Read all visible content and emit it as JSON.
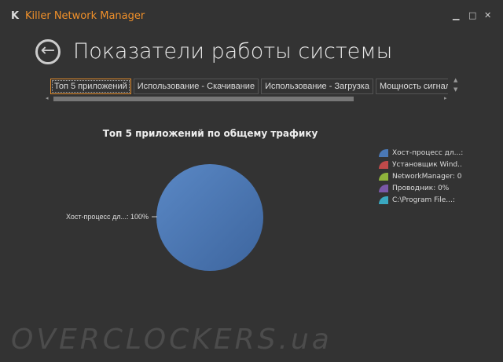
{
  "window": {
    "title": "Killer Network Manager",
    "logo": "K",
    "minimize": "▁",
    "maximize": "□",
    "close": "✕"
  },
  "header": {
    "title": "Показатели работы системы",
    "back_icon": "arrow-left"
  },
  "tabs": [
    {
      "label": "Топ 5 приложений",
      "active": true
    },
    {
      "label": "Использование - Скачивание"
    },
    {
      "label": "Использование - Загрузка"
    },
    {
      "label": "Мощность сигнала"
    }
  ],
  "chart_data": {
    "type": "pie",
    "title": "Топ 5 приложений по общему трафику",
    "legend_position": "right",
    "slices": [
      {
        "name": "Хост-процесс дл...:",
        "value": 100,
        "color": "#4a78b5"
      },
      {
        "name": "Установщик Wind..",
        "value": 0,
        "color": "#c04a4a"
      },
      {
        "name": "NetworkManager: 0",
        "value": 0,
        "color": "#8fb43c"
      },
      {
        "name": "Проводник: 0%",
        "value": 0,
        "color": "#7a58a8"
      },
      {
        "name": "C:\\Program File...:",
        "value": 0,
        "color": "#3aa8c0"
      }
    ],
    "data_label": "Хост-процесс дл...: 100%"
  },
  "watermark": "OVERCLOCKERS.ua"
}
